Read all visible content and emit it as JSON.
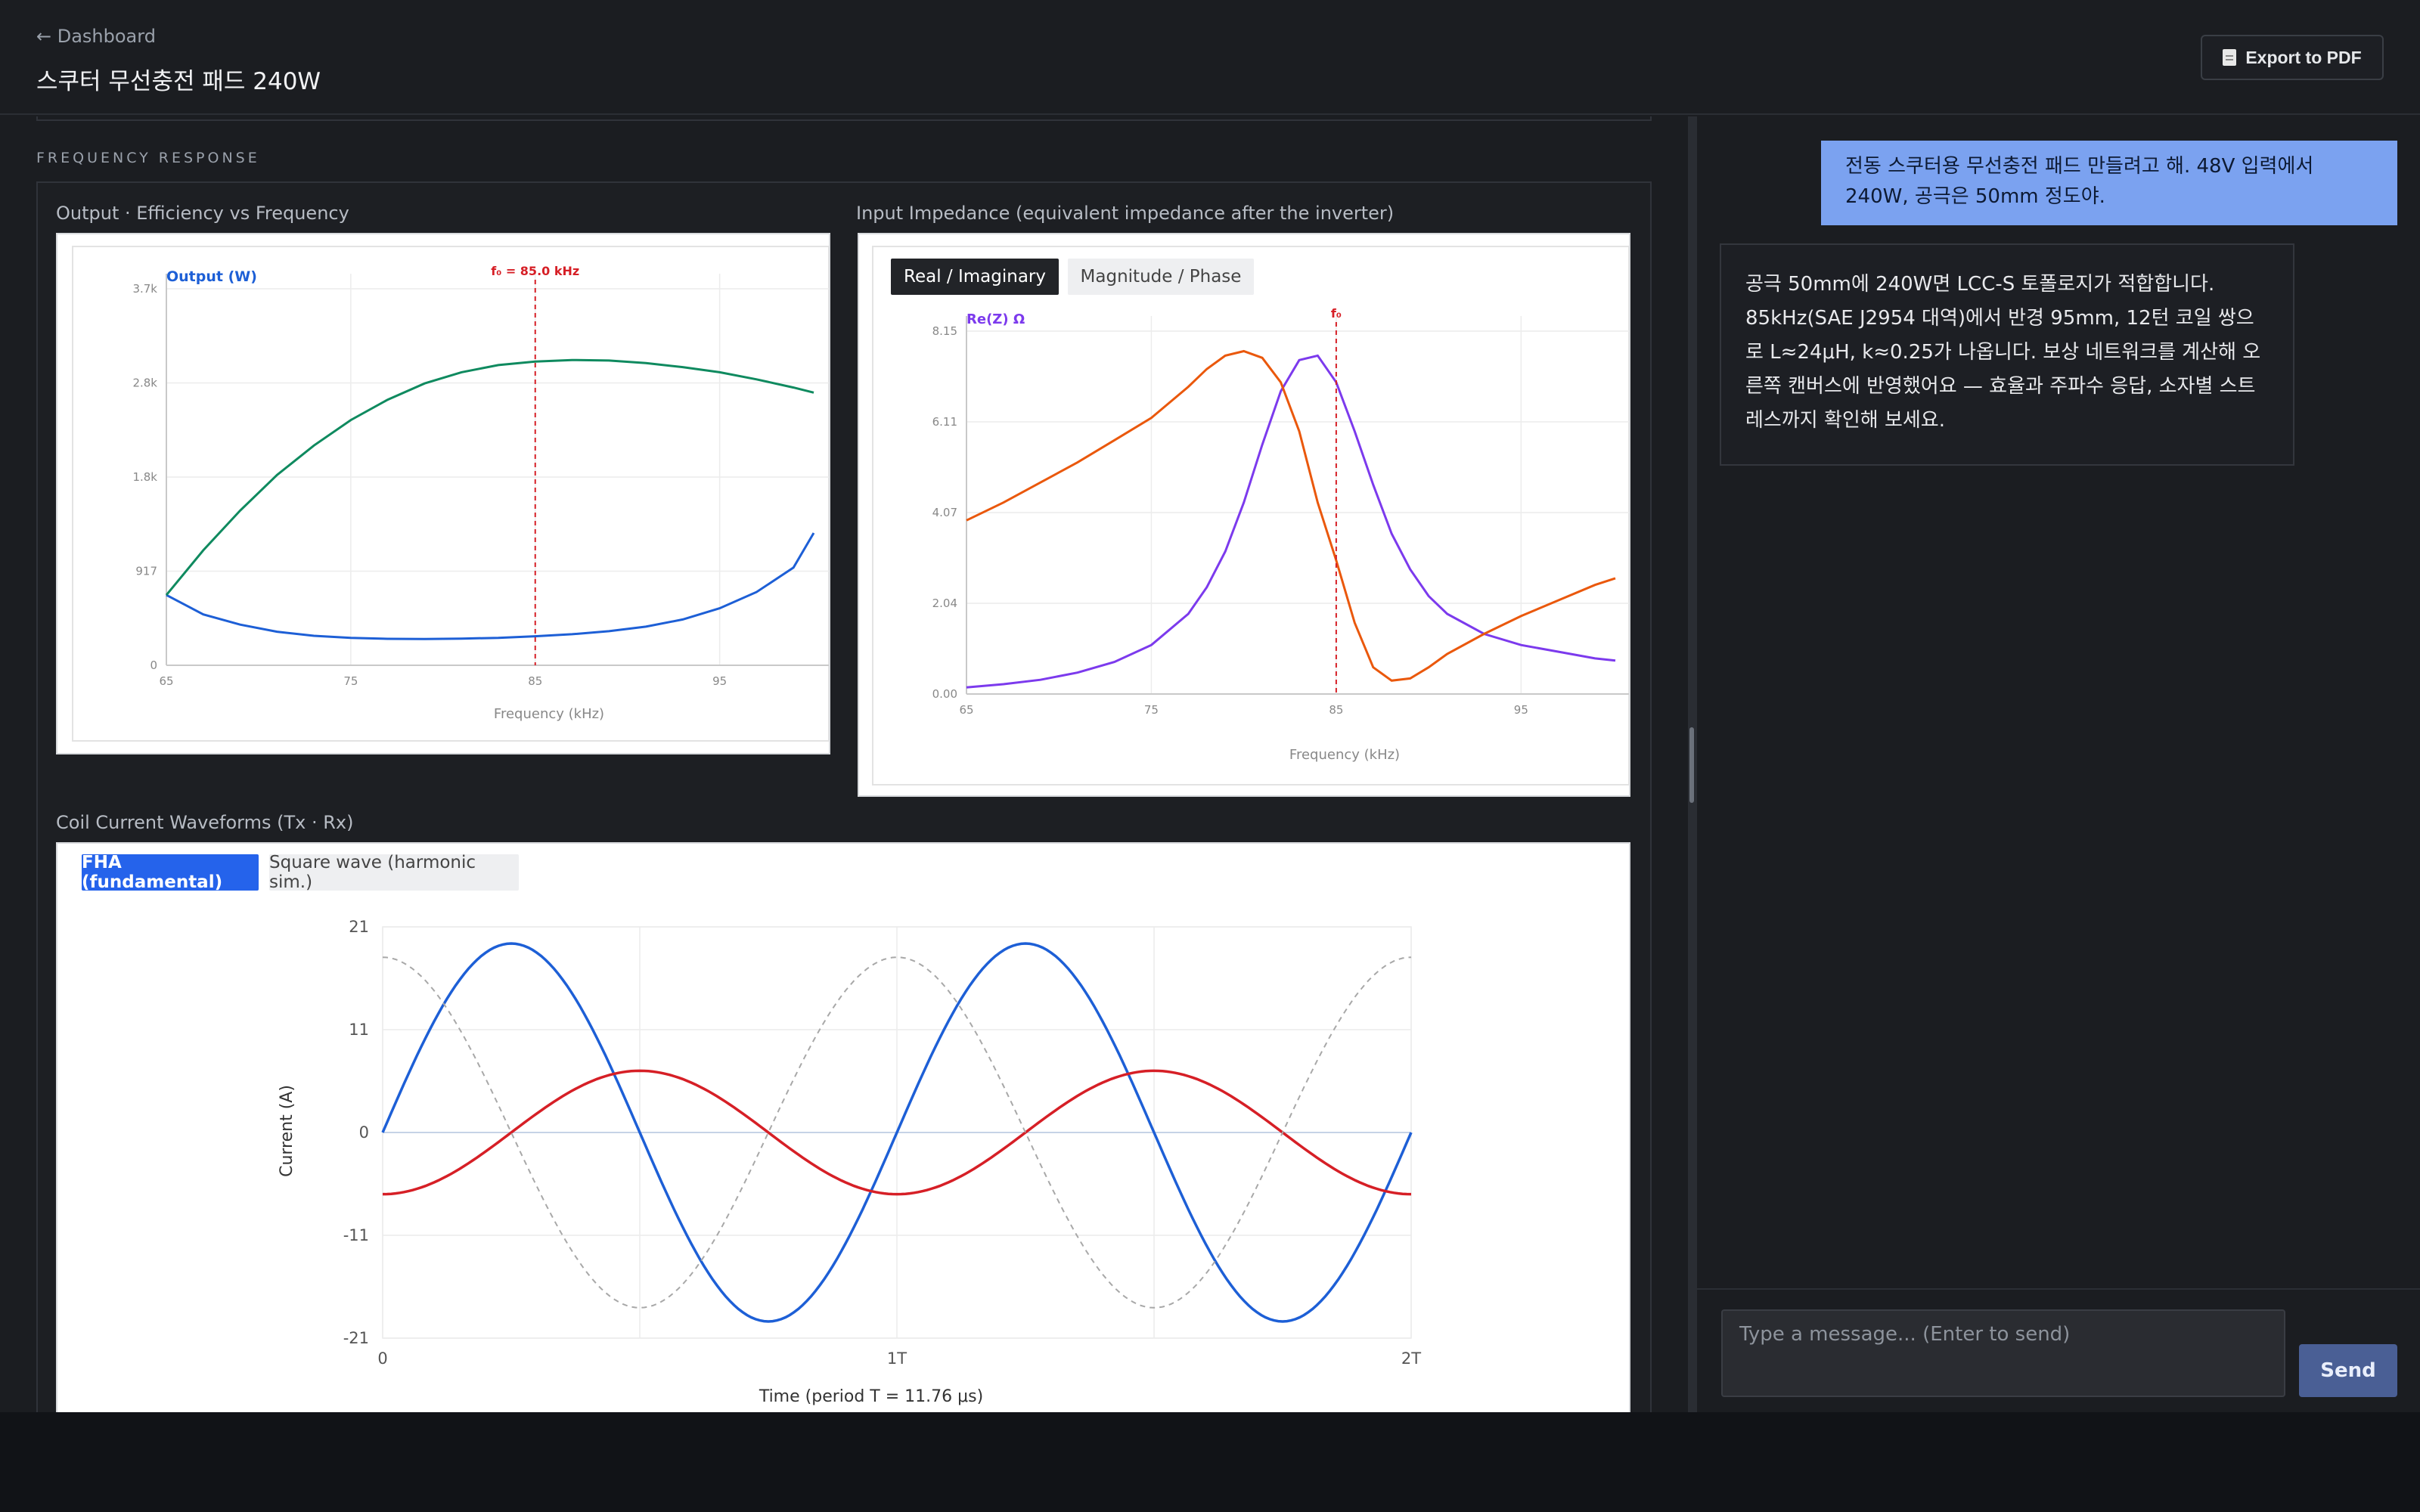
{
  "header": {
    "back_label": "← Dashboard",
    "title": "스쿠터 무선충전 패드 240W",
    "export_label": "Export to PDF"
  },
  "section": {
    "label": "FREQUENCY RESPONSE"
  },
  "plots": {
    "output_efficiency": {
      "title": "Output · Efficiency vs Frequency",
      "y_label": "Output (W)",
      "marker_label": "f₀ = 85.0 kHz",
      "y_ticks": [
        "0",
        "917",
        "1.8k",
        "2.8k",
        "3.7k"
      ],
      "x_ticks": [
        "65",
        "75",
        "85",
        "95"
      ],
      "x_label": "Frequency (kHz)"
    },
    "impedance": {
      "title": "Input Impedance (equivalent impedance after the inverter)",
      "tabs": [
        "Real / Imaginary",
        "Magnitude / Phase"
      ],
      "active_tab": "Real / Imaginary",
      "y_label": "Re(Z) Ω",
      "marker_label": "f₀",
      "y_ticks": [
        "0.00",
        "2.04",
        "4.07",
        "6.11",
        "8.15"
      ],
      "x_ticks": [
        "65",
        "75",
        "85",
        "95"
      ],
      "x_label": "Frequency (kHz)"
    },
    "waveforms": {
      "title": "Coil Current Waveforms (Tx · Rx)",
      "tabs": [
        "FHA (fundamental)",
        "Square wave (harmonic sim.)"
      ],
      "active_tab": "FHA (fundamental)",
      "y_ticks": [
        "21",
        "11",
        "0",
        "-11",
        "-21"
      ],
      "x_ticks": [
        "0",
        "1T",
        "2T"
      ],
      "y_label": "Current (A)",
      "x_label": "Time (period T = 11.76 μs)"
    }
  },
  "chart_data": [
    {
      "type": "line",
      "x": [
        65,
        67,
        69,
        71,
        73,
        75,
        77,
        79,
        81,
        83,
        85,
        87,
        89,
        91,
        93,
        95,
        97,
        99,
        100.1
      ],
      "series": [
        {
          "color": "#1d5fd6",
          "values": [
            690,
            500,
            400,
            330,
            290,
            270,
            260,
            258,
            262,
            270,
            285,
            305,
            335,
            380,
            450,
            560,
            720,
            960,
            1300
          ]
        },
        {
          "color": "#0f8a5f",
          "values": [
            690,
            1130,
            1520,
            1870,
            2160,
            2410,
            2610,
            2770,
            2880,
            2950,
            2985,
            3000,
            2995,
            2970,
            2930,
            2880,
            2810,
            2730,
            2680
          ]
        }
      ],
      "xlim": [
        65,
        100.1
      ],
      "ylim": [
        0,
        3700
      ],
      "marker_x": 85,
      "grid": true
    },
    {
      "type": "line",
      "x": [
        65,
        67,
        69,
        71,
        73,
        75,
        77,
        78,
        79,
        80,
        81,
        82,
        83,
        84,
        85,
        86,
        87,
        88,
        89,
        90,
        91,
        93,
        95,
        97,
        99,
        100.1
      ],
      "series": [
        {
          "color": "#7c3aed",
          "values": [
            0.15,
            0.22,
            0.32,
            0.48,
            0.72,
            1.1,
            1.8,
            2.4,
            3.2,
            4.3,
            5.6,
            6.8,
            7.5,
            7.6,
            7.0,
            5.9,
            4.7,
            3.6,
            2.8,
            2.2,
            1.8,
            1.35,
            1.1,
            0.95,
            0.8,
            0.75
          ]
        },
        {
          "color": "#ea580c",
          "values": [
            3.9,
            4.3,
            4.75,
            5.2,
            5.7,
            6.2,
            6.9,
            7.3,
            7.6,
            7.7,
            7.55,
            7.0,
            5.9,
            4.3,
            3.0,
            1.6,
            0.6,
            0.3,
            0.35,
            0.6,
            0.9,
            1.35,
            1.75,
            2.1,
            2.45,
            2.6
          ]
        }
      ],
      "xlim": [
        65,
        100.1
      ],
      "ylim": [
        0,
        8.15
      ],
      "marker_x": 85,
      "grid": true
    },
    {
      "type": "line",
      "x_unit": "T",
      "xlim": [
        0,
        2
      ],
      "ylim": [
        -21,
        21
      ],
      "series": [
        {
          "color": "#1d5fd6",
          "amplitude": 19.3,
          "phase_deg": 0
        },
        {
          "color": "#d61f26",
          "amplitude": 6.3,
          "phase_deg": -90
        },
        {
          "color": "#a8a8a8",
          "amplitude": 17.9,
          "phase_deg": 90,
          "dashed": true
        }
      ],
      "grid": true
    }
  ],
  "chat": {
    "user_message": "전동 스쿠터용 무선충전 패드 만들려고 해. 48V 입력에서 240W, 공극은 50mm 정도야.",
    "assistant_message": "공극 50mm에 240W면 LCC-S 토폴로지가 적합합니다. 85kHz(SAE J2954 대역)에서 반경 95mm, 12턴 코일 쌍으로 L≈24μH, k≈0.25가 나옵니다. 보상 네트워크를 계산해 오른쪽 캔버스에 반영했어요 — 효율과 주파수 응답, 소자별 스트레스까지 확인해 보세요.",
    "input_placeholder": "Type a message... (Enter to send)",
    "send_label": "Send"
  }
}
